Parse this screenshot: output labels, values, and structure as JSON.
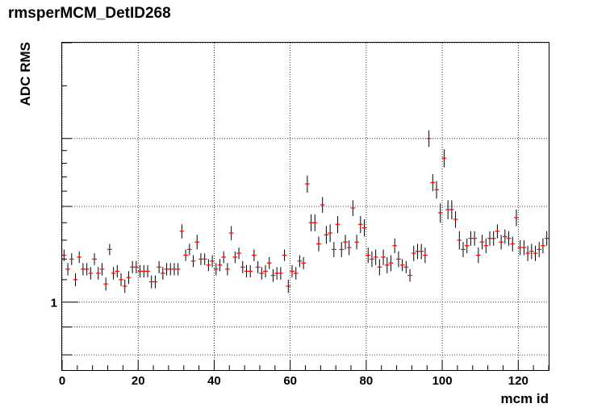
{
  "chart_data": {
    "type": "scatter",
    "title": "rmsperMCM_DetID268",
    "xlabel": "mcm id",
    "ylabel": "ADC RMS",
    "xlim": [
      0,
      128
    ],
    "ylim": [
      0.75,
      3.0
    ],
    "y_scale": "log",
    "grid": true,
    "x_ticks": [
      "0",
      "20",
      "40",
      "60",
      "80",
      "100",
      "120"
    ],
    "y_tick_labels": [
      {
        "value": 1,
        "label": "1"
      }
    ],
    "marker": "cross with error bars",
    "marker_color": "#ff0000",
    "errorbar_color": "#000000",
    "series": [
      {
        "x": [
          0.5,
          1.5,
          2.5,
          3.5,
          4.5,
          5.5,
          6.5,
          7.5,
          8.5,
          9.5,
          10.5,
          11.5,
          12.5,
          13.5,
          14.5,
          15.5,
          16.5,
          17.5,
          18.5,
          19.5,
          20.5,
          21.5,
          22.5,
          23.5,
          24.5,
          25.5,
          26.5,
          27.5,
          28.5,
          29.5,
          30.5,
          31.5,
          32.5,
          33.5,
          34.5,
          35.5,
          36.5,
          37.5,
          38.5,
          39.5,
          40.5,
          41.5,
          42.5,
          43.5,
          44.5,
          45.5,
          46.5,
          47.5,
          48.5,
          49.5,
          50.5,
          51.5,
          52.5,
          53.5,
          54.5,
          55.5,
          56.5,
          57.5,
          58.5,
          59.5,
          60.5,
          61.5,
          62.5,
          63.5,
          64.5,
          65.5,
          66.5,
          67.5,
          68.5,
          69.5,
          70.5,
          71.5,
          72.5,
          73.5,
          74.5,
          75.5,
          76.5,
          77.5,
          78.5,
          79.5,
          80.5,
          81.5,
          82.5,
          83.5,
          84.5,
          85.5,
          86.5,
          87.5,
          88.5,
          89.5,
          90.5,
          91.5,
          92.5,
          93.5,
          94.5,
          95.5,
          96.5,
          97.5,
          98.5,
          99.5,
          100.5,
          101.5,
          102.5,
          103.5,
          104.5,
          105.5,
          106.5,
          107.5,
          108.5,
          109.5,
          110.5,
          111.5,
          112.5,
          113.5,
          114.5,
          115.5,
          116.5,
          117.5,
          118.5,
          119.5,
          120.5,
          121.5,
          122.5,
          123.5,
          124.5,
          125.5,
          126.5,
          127.5
        ],
        "y": [
          1.22,
          1.15,
          1.2,
          1.1,
          1.21,
          1.15,
          1.15,
          1.13,
          1.2,
          1.13,
          1.15,
          1.08,
          1.25,
          1.13,
          1.14,
          1.1,
          1.07,
          1.11,
          1.16,
          1.16,
          1.14,
          1.14,
          1.14,
          1.09,
          1.09,
          1.16,
          1.13,
          1.15,
          1.15,
          1.15,
          1.15,
          1.35,
          1.22,
          1.25,
          1.19,
          1.29,
          1.2,
          1.2,
          1.17,
          1.19,
          1.15,
          1.17,
          1.21,
          1.15,
          1.34,
          1.21,
          1.23,
          1.16,
          1.14,
          1.14,
          1.22,
          1.16,
          1.13,
          1.14,
          1.18,
          1.12,
          1.13,
          1.13,
          1.22,
          1.07,
          1.14,
          1.13,
          1.19,
          1.18,
          1.65,
          1.4,
          1.4,
          1.28,
          1.51,
          1.33,
          1.34,
          1.25,
          1.39,
          1.25,
          1.29,
          1.26,
          1.49,
          1.29,
          1.39,
          1.37,
          1.22,
          1.2,
          1.21,
          1.16,
          1.21,
          1.17,
          1.18,
          1.27,
          1.2,
          1.17,
          1.16,
          1.12,
          1.23,
          1.24,
          1.24,
          1.22,
          2.0,
          1.66,
          1.61,
          1.46,
          1.84,
          1.48,
          1.48,
          1.42,
          1.3,
          1.25,
          1.27,
          1.31,
          1.31,
          1.22,
          1.29,
          1.27,
          1.31,
          1.31,
          1.35,
          1.29,
          1.32,
          1.31,
          1.28,
          1.43,
          1.26,
          1.26,
          1.23,
          1.24,
          1.23,
          1.25,
          1.27,
          1.31
        ],
        "err": [
          0.03,
          0.03,
          0.03,
          0.03,
          0.03,
          0.03,
          0.03,
          0.03,
          0.03,
          0.03,
          0.03,
          0.03,
          0.03,
          0.03,
          0.03,
          0.03,
          0.03,
          0.03,
          0.03,
          0.03,
          0.03,
          0.03,
          0.03,
          0.03,
          0.03,
          0.03,
          0.03,
          0.03,
          0.03,
          0.03,
          0.03,
          0.04,
          0.03,
          0.03,
          0.03,
          0.04,
          0.03,
          0.03,
          0.03,
          0.03,
          0.03,
          0.03,
          0.03,
          0.03,
          0.04,
          0.03,
          0.03,
          0.03,
          0.03,
          0.03,
          0.03,
          0.03,
          0.03,
          0.03,
          0.03,
          0.03,
          0.03,
          0.03,
          0.03,
          0.03,
          0.03,
          0.03,
          0.03,
          0.03,
          0.06,
          0.05,
          0.05,
          0.04,
          0.05,
          0.05,
          0.05,
          0.04,
          0.05,
          0.04,
          0.04,
          0.04,
          0.05,
          0.04,
          0.05,
          0.05,
          0.04,
          0.04,
          0.04,
          0.04,
          0.04,
          0.04,
          0.04,
          0.04,
          0.04,
          0.03,
          0.03,
          0.03,
          0.04,
          0.04,
          0.04,
          0.04,
          0.07,
          0.06,
          0.06,
          0.06,
          0.07,
          0.06,
          0.06,
          0.05,
          0.05,
          0.04,
          0.04,
          0.04,
          0.04,
          0.04,
          0.04,
          0.04,
          0.04,
          0.04,
          0.04,
          0.04,
          0.04,
          0.04,
          0.04,
          0.05,
          0.04,
          0.04,
          0.04,
          0.04,
          0.04,
          0.04,
          0.04,
          0.04
        ]
      }
    ]
  }
}
